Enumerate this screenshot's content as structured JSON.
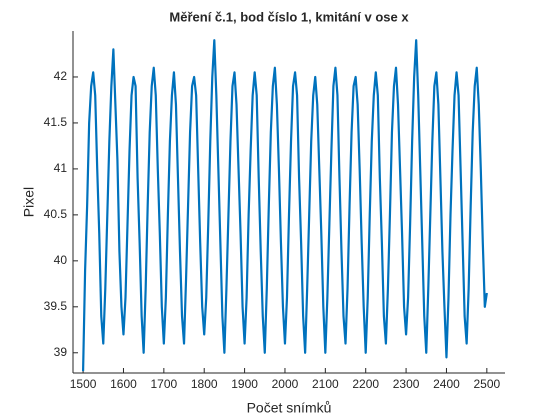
{
  "chart_data": {
    "type": "line",
    "title": "Měření č.1, bod číslo 1, kmitání v ose x",
    "xlabel": "Počet snímků",
    "ylabel": "Pixel",
    "color": "#0072bd",
    "xlim": [
      1475,
      2545
    ],
    "ylim": [
      38.78,
      42.5
    ],
    "xticks": [
      1500,
      1600,
      1700,
      1800,
      1900,
      2000,
      2100,
      2200,
      2300,
      2400,
      2500
    ],
    "yticks": [
      39,
      39.5,
      40,
      40.5,
      41,
      41.5,
      42
    ],
    "x": [
      1500,
      1505,
      1510,
      1515,
      1520,
      1525,
      1530,
      1535,
      1540,
      1545,
      1550,
      1555,
      1560,
      1565,
      1570,
      1575,
      1580,
      1585,
      1590,
      1595,
      1600,
      1605,
      1610,
      1615,
      1620,
      1625,
      1630,
      1635,
      1640,
      1645,
      1650,
      1655,
      1660,
      1665,
      1670,
      1675,
      1680,
      1685,
      1690,
      1695,
      1700,
      1705,
      1710,
      1715,
      1720,
      1725,
      1730,
      1735,
      1740,
      1745,
      1750,
      1755,
      1760,
      1765,
      1770,
      1775,
      1780,
      1785,
      1790,
      1795,
      1800,
      1805,
      1810,
      1815,
      1820,
      1825,
      1830,
      1835,
      1840,
      1845,
      1850,
      1855,
      1860,
      1865,
      1870,
      1875,
      1880,
      1885,
      1890,
      1895,
      1900,
      1905,
      1910,
      1915,
      1920,
      1925,
      1930,
      1935,
      1940,
      1945,
      1950,
      1955,
      1960,
      1965,
      1970,
      1975,
      1980,
      1985,
      1990,
      1995,
      2000,
      2005,
      2010,
      2015,
      2020,
      2025,
      2030,
      2035,
      2040,
      2045,
      2050,
      2055,
      2060,
      2065,
      2070,
      2075,
      2080,
      2085,
      2090,
      2095,
      2100,
      2105,
      2110,
      2115,
      2120,
      2125,
      2130,
      2135,
      2140,
      2145,
      2150,
      2155,
      2160,
      2165,
      2170,
      2175,
      2180,
      2185,
      2190,
      2195,
      2200,
      2205,
      2210,
      2215,
      2220,
      2225,
      2230,
      2235,
      2240,
      2245,
      2250,
      2255,
      2260,
      2265,
      2270,
      2275,
      2280,
      2285,
      2290,
      2295,
      2300,
      2305,
      2310,
      2315,
      2320,
      2325,
      2330,
      2335,
      2340,
      2345,
      2350,
      2355,
      2360,
      2365,
      2370,
      2375,
      2380,
      2385,
      2390,
      2395,
      2400,
      2405,
      2410,
      2415,
      2420,
      2425,
      2430,
      2435,
      2440,
      2445,
      2450,
      2455,
      2460,
      2465,
      2470,
      2475,
      2480,
      2485,
      2490,
      2495,
      2500
    ],
    "values": [
      38.8,
      39.9,
      40.6,
      41.5,
      41.9,
      42.05,
      41.8,
      41.0,
      40.3,
      39.4,
      39.1,
      39.7,
      40.5,
      41.3,
      41.9,
      42.3,
      41.7,
      41.1,
      40.1,
      39.5,
      39.2,
      39.6,
      40.4,
      41.2,
      41.8,
      42.0,
      41.9,
      40.9,
      40.2,
      39.4,
      39.0,
      39.7,
      40.6,
      41.4,
      41.9,
      42.1,
      41.8,
      41.0,
      40.3,
      39.5,
      39.1,
      39.6,
      40.5,
      41.3,
      41.8,
      42.05,
      41.7,
      40.9,
      40.1,
      39.4,
      39.1,
      39.8,
      40.6,
      41.4,
      41.9,
      42.0,
      41.8,
      41.0,
      40.2,
      39.5,
      39.2,
      39.6,
      40.4,
      41.3,
      42.0,
      42.4,
      41.8,
      41.0,
      40.2,
      39.4,
      39.0,
      39.7,
      40.5,
      41.3,
      41.9,
      42.05,
      41.7,
      41.0,
      40.3,
      39.5,
      39.1,
      39.6,
      40.5,
      41.2,
      41.8,
      42.05,
      41.8,
      40.9,
      40.1,
      39.4,
      39.0,
      39.7,
      40.6,
      41.4,
      41.9,
      42.1,
      41.7,
      41.0,
      40.2,
      39.5,
      39.1,
      39.6,
      40.5,
      41.3,
      41.9,
      42.05,
      41.8,
      40.9,
      40.2,
      39.4,
      39.0,
      39.7,
      40.5,
      41.3,
      41.8,
      42.0,
      41.7,
      41.0,
      40.3,
      39.5,
      39.0,
      39.6,
      40.4,
      41.2,
      41.9,
      42.1,
      41.8,
      40.9,
      40.1,
      39.4,
      39.1,
      39.7,
      40.6,
      41.4,
      41.9,
      42.0,
      41.7,
      41.0,
      40.2,
      39.5,
      39.0,
      39.6,
      40.5,
      41.3,
      41.8,
      42.05,
      41.8,
      40.9,
      40.2,
      39.4,
      39.1,
      39.7,
      40.5,
      41.4,
      41.9,
      42.1,
      41.7,
      41.0,
      40.3,
      39.5,
      39.2,
      39.6,
      40.4,
      41.3,
      42.0,
      42.4,
      41.8,
      41.0,
      40.2,
      39.4,
      39.0,
      39.7,
      40.5,
      41.3,
      41.9,
      42.05,
      41.7,
      40.9,
      40.1,
      39.5,
      38.95,
      39.6,
      40.5,
      41.2,
      41.8,
      42.05,
      41.8,
      41.0,
      40.2,
      39.4,
      39.1,
      39.7,
      40.6,
      41.4,
      41.9,
      42.1,
      41.7,
      41.0,
      40.2,
      39.5,
      39.65
    ]
  }
}
